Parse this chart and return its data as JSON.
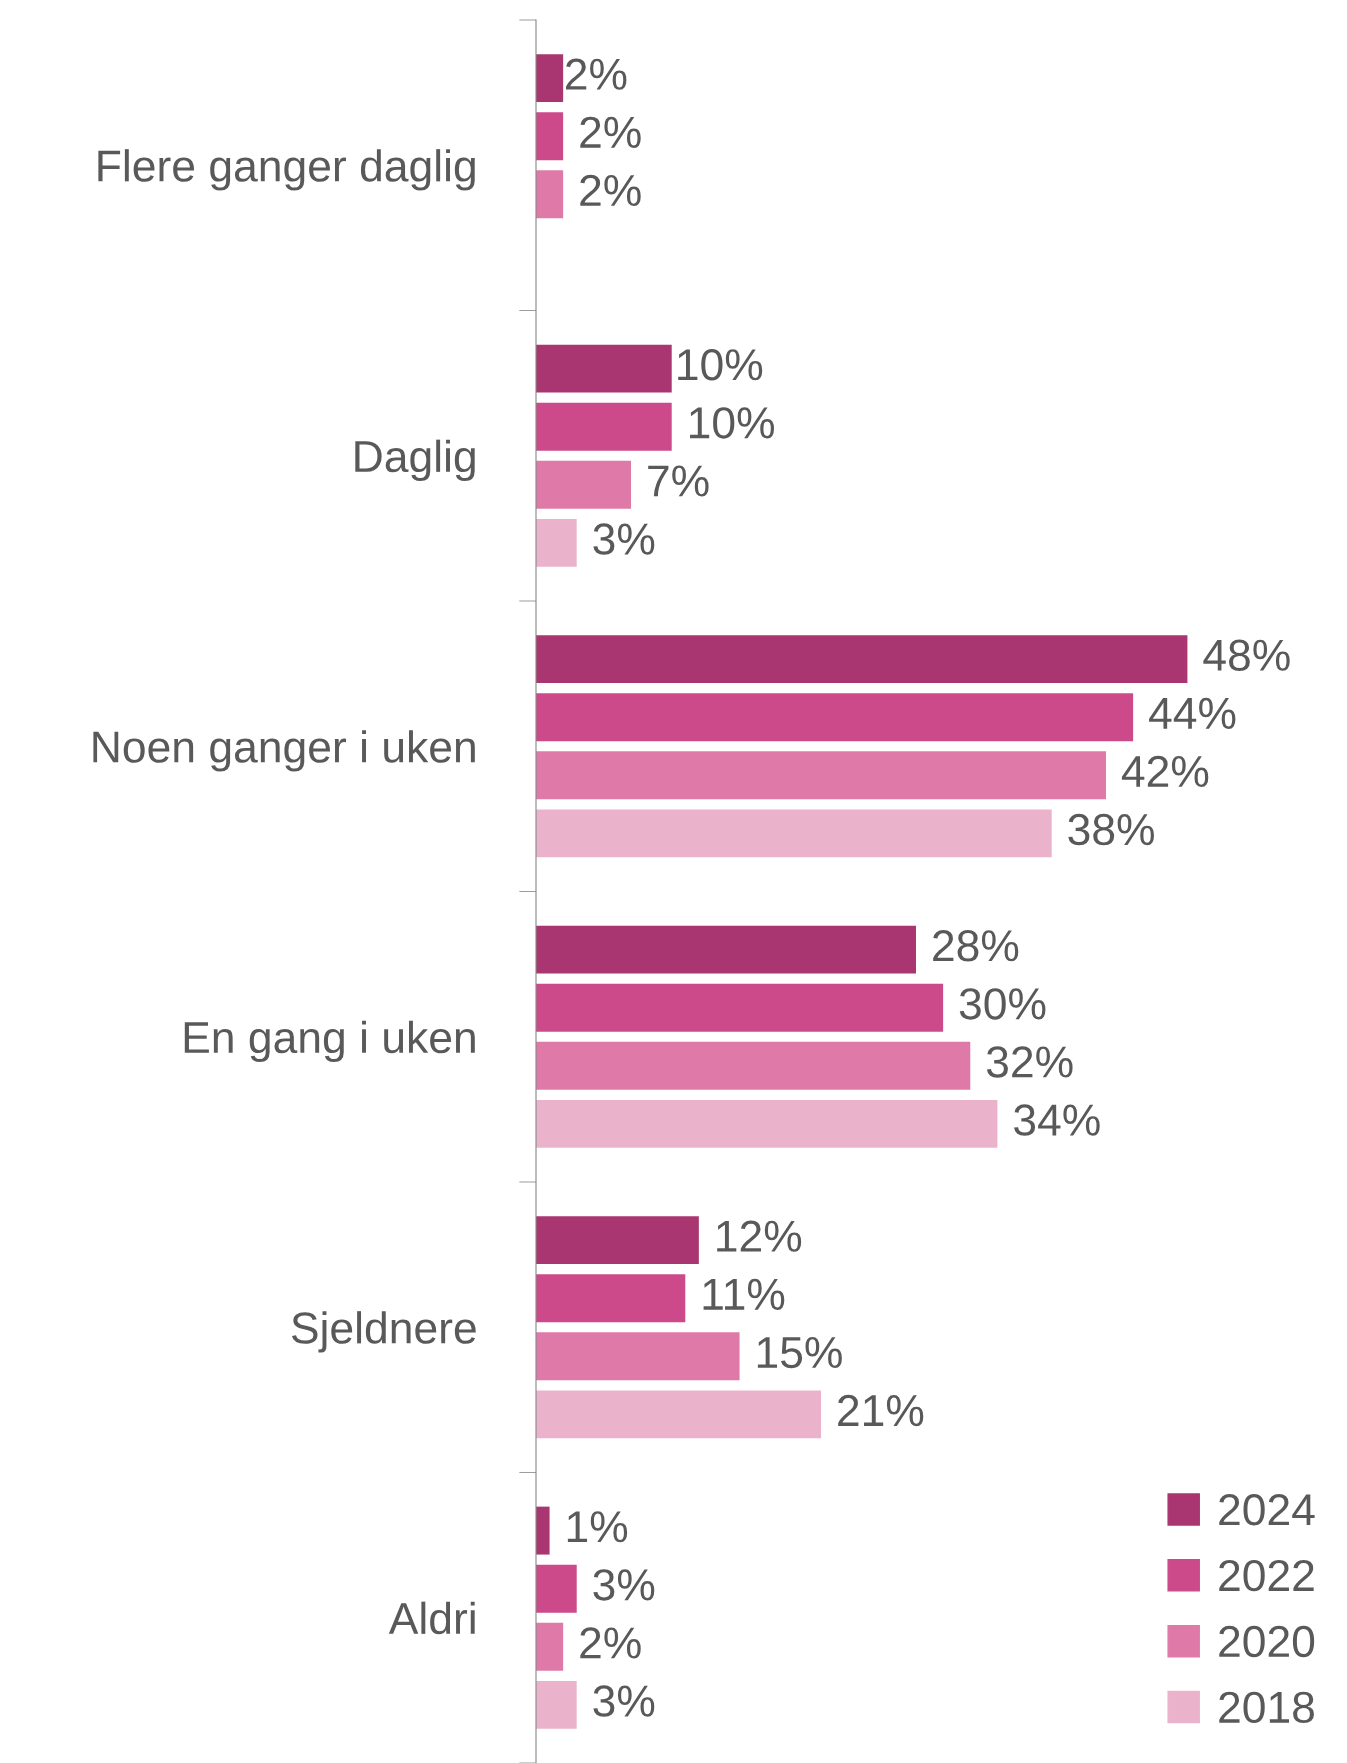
{
  "chart_data": {
    "type": "bar",
    "orientation": "horizontal",
    "categories": [
      "Flere ganger daglig",
      "Daglig",
      "Noen ganger i uken",
      "En gang i uken",
      "Sjeldnere",
      "Aldri"
    ],
    "series": [
      {
        "name": "2024",
        "color": "#a93671",
        "values": [
          2,
          10,
          48,
          28,
          12,
          1
        ],
        "value_labels": [
          "2%",
          "10%",
          "48%",
          "28%",
          "12%",
          "1%"
        ]
      },
      {
        "name": "2022",
        "color": "#cc4a8a",
        "values": [
          2,
          10,
          44,
          30,
          11,
          3
        ],
        "value_labels": [
          "2%",
          "10%",
          "44%",
          "30%",
          "11%",
          "3%"
        ]
      },
      {
        "name": "2020",
        "color": "#df7aa8",
        "values": [
          2,
          7,
          42,
          32,
          15,
          2
        ],
        "value_labels": [
          "2%",
          "7%",
          "42%",
          "32%",
          "15%",
          "2%"
        ]
      },
      {
        "name": "2018",
        "color": "#ebb3cb",
        "values": [
          null,
          3,
          38,
          34,
          21,
          3
        ],
        "value_labels": [
          null,
          "3%",
          "38%",
          "34%",
          "21%",
          "3%"
        ]
      }
    ],
    "legend": "bottom right",
    "grid": false
  }
}
